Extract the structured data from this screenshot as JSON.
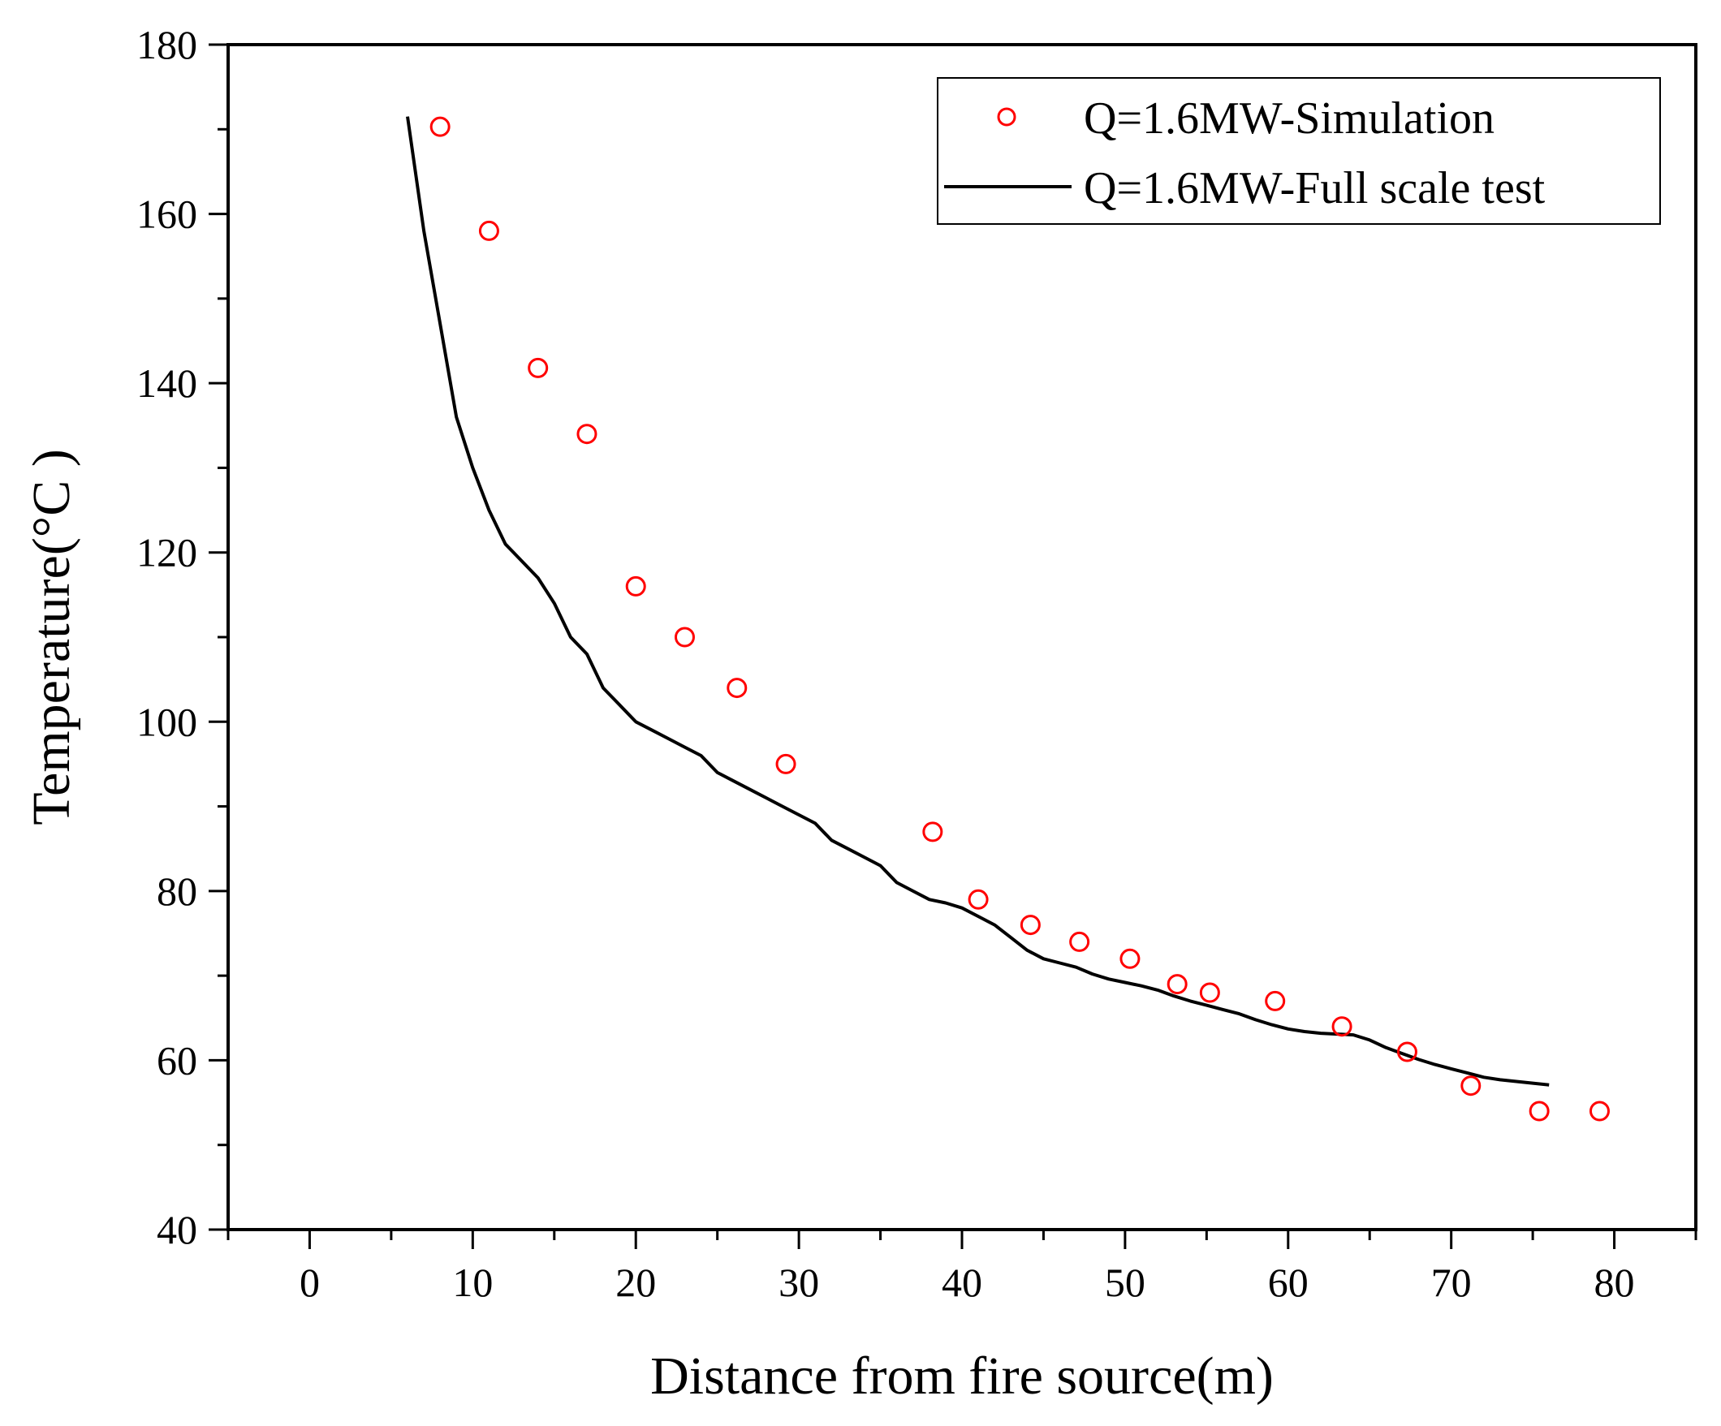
{
  "chart_data": {
    "type": "scatter+line",
    "title": "",
    "xlabel": "Distance from fire source(m)",
    "ylabel": "Temperature(°C )",
    "xlim": [
      -5,
      85
    ],
    "ylim": [
      40,
      180
    ],
    "xticks": [
      0,
      10,
      20,
      30,
      40,
      50,
      60,
      70,
      80
    ],
    "yticks": [
      40,
      60,
      80,
      100,
      120,
      140,
      160,
      180
    ],
    "legend_position": "top-right",
    "series": [
      {
        "name": "Q=1.6MW-Simulation",
        "style": "markers",
        "color": "#ff0000",
        "x": [
          8,
          11,
          14,
          17,
          20,
          23,
          26.2,
          29.2,
          38.2,
          41,
          44.2,
          47.2,
          50.3,
          53.2,
          55.2,
          59.2,
          63.3,
          67.3,
          71.2,
          75.4,
          79.1
        ],
        "y": [
          170.3,
          158,
          141.8,
          134,
          116,
          110,
          104,
          95,
          87,
          79,
          76,
          74,
          72,
          69,
          68,
          67,
          64,
          61,
          57,
          54,
          54
        ]
      },
      {
        "name": "Q=1.6MW-Full scale test",
        "style": "line",
        "color": "#000000",
        "x": [
          6,
          7,
          8,
          9,
          10,
          11,
          12,
          13,
          14,
          15,
          16,
          17,
          18,
          19,
          20,
          21,
          22,
          23,
          24,
          25,
          26,
          27,
          28,
          29,
          30,
          31,
          32,
          33,
          34,
          35,
          36,
          37,
          38,
          39,
          40,
          41,
          42,
          43,
          44,
          45,
          46,
          47,
          48,
          49,
          50,
          51,
          52,
          53,
          54,
          55,
          56,
          57,
          58,
          59,
          60,
          61,
          62,
          63,
          64,
          65,
          66,
          67,
          68,
          69,
          70,
          71,
          72,
          73,
          74,
          75,
          76
        ],
        "y": [
          171.5,
          158,
          147,
          136,
          130,
          125,
          121,
          119,
          117,
          114,
          110,
          108,
          104,
          102,
          100,
          99,
          98,
          97,
          96,
          94,
          93,
          92,
          91,
          90,
          89,
          88,
          86,
          85,
          84,
          83,
          81,
          80,
          79,
          78.6,
          78,
          77,
          76,
          74.5,
          73,
          72,
          71.5,
          71,
          70.2,
          69.6,
          69.2,
          68.8,
          68.3,
          67.6,
          67,
          66.5,
          66,
          65.5,
          64.8,
          64.2,
          63.7,
          63.4,
          63.2,
          63.1,
          63,
          62.4,
          61.5,
          60.8,
          60.1,
          59.5,
          59,
          58.5,
          58,
          57.7,
          57.5,
          57.3,
          57.1
        ]
      }
    ]
  }
}
